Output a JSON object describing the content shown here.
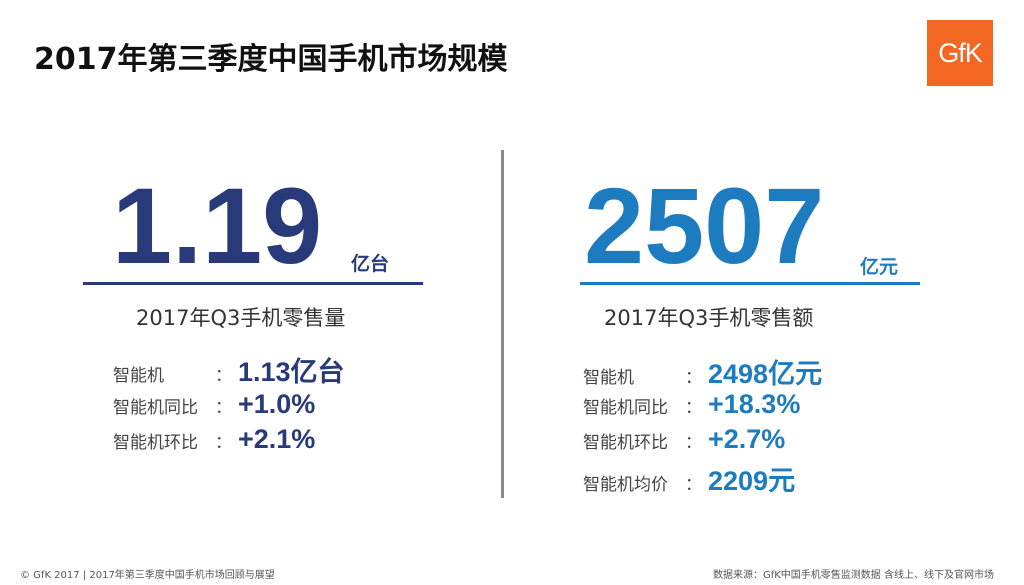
{
  "title": "2017年第三季度中国手机市场规模",
  "logo": {
    "text": "GfK",
    "color": "#f26722"
  },
  "colors": {
    "left_accent": "#283a7a",
    "right_accent": "#1d7bbf"
  },
  "left": {
    "big_number": "1.19",
    "unit": "亿台",
    "subtitle": "2017年Q3手机零售量",
    "stats": [
      {
        "label": "智能机",
        "colon": "：",
        "value": "1.13亿台"
      },
      {
        "label": "智能机同比",
        "colon": "：",
        "value": "+1.0%"
      },
      {
        "label": "智能机环比",
        "colon": "：",
        "value": "+2.1%"
      }
    ]
  },
  "right": {
    "big_number": "2507",
    "unit": "亿元",
    "subtitle": "2017年Q3手机零售额",
    "stats": [
      {
        "label": "智能机",
        "colon": "：",
        "value": "2498亿元"
      },
      {
        "label": "智能机同比",
        "colon": "：",
        "value": "+18.3%"
      },
      {
        "label": "智能机环比",
        "colon": "：",
        "value": "+2.7%"
      },
      {
        "label": "智能机均价",
        "colon": "：",
        "value": "2209元"
      }
    ]
  },
  "footer": {
    "left": "© GfK 2017 | 2017年第三季度中国手机市场回顾与展望",
    "right": "数据来源：GfK中国手机零售监测数据 含线上、线下及官网市场"
  }
}
